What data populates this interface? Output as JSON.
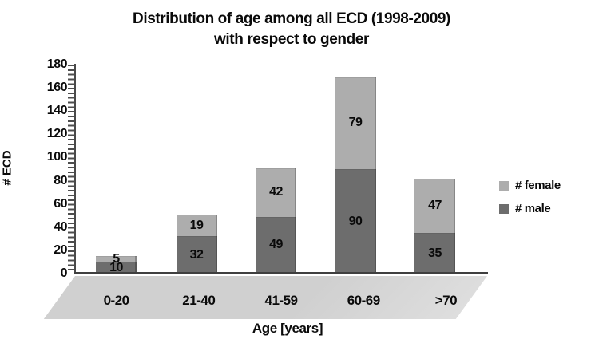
{
  "title": {
    "line1": "Distribution of age among all ECD (1998-2009)",
    "line2": "with respect to gender"
  },
  "chart_data": {
    "type": "bar",
    "stacked": true,
    "title": "Distribution of age among all ECD (1998-2009) with respect to gender",
    "categories": [
      "0-20",
      "21-40",
      "41-59",
      "60-69",
      ">70"
    ],
    "series": [
      {
        "name": "# male",
        "color": "#6D6D6D",
        "values": [
          10,
          32,
          49,
          90,
          35
        ]
      },
      {
        "name": "# female",
        "color": "#ADADAD",
        "values": [
          5,
          19,
          42,
          79,
          47
        ]
      }
    ],
    "totals": [
      15,
      51,
      91,
      169,
      82
    ],
    "xlabel": "Age [years]",
    "ylabel": "# ECD",
    "ylim": [
      0,
      180
    ],
    "ytick_step": 20,
    "yticks": [
      0,
      20,
      40,
      60,
      80,
      100,
      120,
      140,
      160,
      180
    ],
    "grid": false,
    "legend_position": "right",
    "legend_order": [
      "# female",
      "# male"
    ],
    "data_labels": "inside-center"
  }
}
